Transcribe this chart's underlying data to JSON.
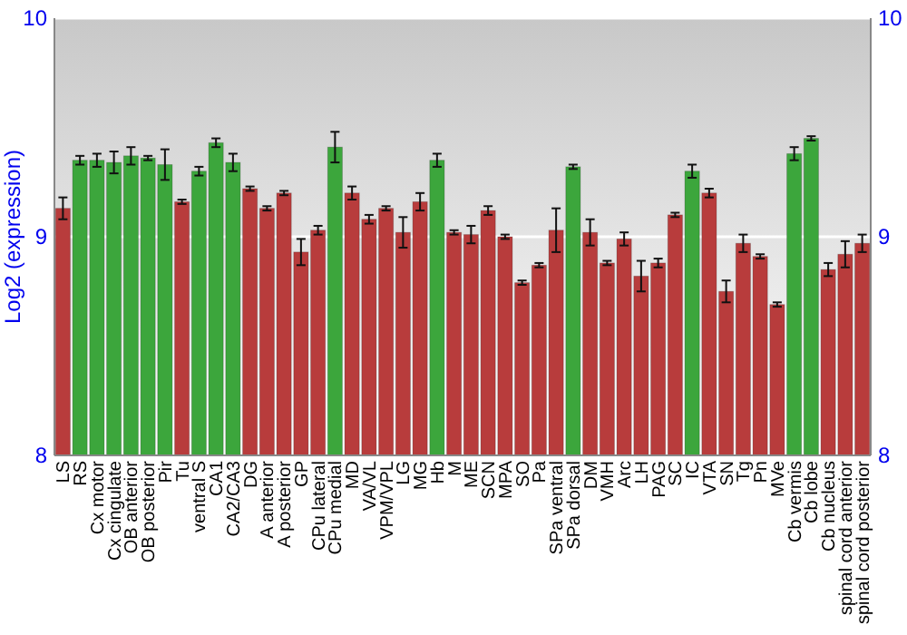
{
  "chart_data": {
    "type": "bar",
    "ylabel": "Log2 (expression)",
    "categories": [
      "LS",
      "RS",
      "Cx motor",
      "Cx cingulate",
      "OB anterior",
      "OB posterior",
      "Pir",
      "Tu",
      "ventral S",
      "CA1",
      "CA2/CA3",
      "DG",
      "A anterior",
      "A posterior",
      "GP",
      "CPu lateral",
      "CPu medial",
      "MD",
      "VA/VL",
      "VPM/VPL",
      "LG",
      "MG",
      "Hb",
      "M",
      "ME",
      "SCN",
      "MPA",
      "SO",
      "Pa",
      "SPa ventral",
      "SPa dorsal",
      "DM",
      "VMH",
      "Arc",
      "LH",
      "PAG",
      "SC",
      "IC",
      "VTA",
      "SN",
      "Tg",
      "Pn",
      "MVe",
      "Cb vermis",
      "Cb lobe",
      "Cb nucleus",
      "spinal cord anterior",
      "spinal cord posterior"
    ],
    "values": [
      9.13,
      9.35,
      9.35,
      9.34,
      9.37,
      9.36,
      9.33,
      9.16,
      9.3,
      9.43,
      9.34,
      9.22,
      9.13,
      9.2,
      8.93,
      9.03,
      9.41,
      9.2,
      9.08,
      9.13,
      9.02,
      9.16,
      9.35,
      9.02,
      9.01,
      9.12,
      9.0,
      8.79,
      8.87,
      9.03,
      9.32,
      9.02,
      8.88,
      8.99,
      8.82,
      8.88,
      9.1,
      9.3,
      9.2,
      8.75,
      8.97,
      8.91,
      8.69,
      9.38,
      9.45,
      8.85,
      8.92,
      8.97
    ],
    "errors": [
      0.05,
      0.02,
      0.03,
      0.05,
      0.04,
      0.01,
      0.07,
      0.01,
      0.02,
      0.02,
      0.04,
      0.01,
      0.01,
      0.01,
      0.06,
      0.02,
      0.07,
      0.03,
      0.02,
      0.01,
      0.07,
      0.04,
      0.03,
      0.01,
      0.04,
      0.02,
      0.01,
      0.01,
      0.01,
      0.1,
      0.01,
      0.06,
      0.01,
      0.03,
      0.07,
      0.02,
      0.01,
      0.03,
      0.02,
      0.05,
      0.04,
      0.01,
      0.01,
      0.03,
      0.01,
      0.03,
      0.06,
      0.04
    ],
    "colors": [
      "#b83c3c",
      "#3ca63c",
      "#3ca63c",
      "#3ca63c",
      "#3ca63c",
      "#3ca63c",
      "#3ca63c",
      "#b83c3c",
      "#3ca63c",
      "#3ca63c",
      "#3ca63c",
      "#b83c3c",
      "#b83c3c",
      "#b83c3c",
      "#b83c3c",
      "#b83c3c",
      "#3ca63c",
      "#b83c3c",
      "#b83c3c",
      "#b83c3c",
      "#b83c3c",
      "#b83c3c",
      "#3ca63c",
      "#b83c3c",
      "#b83c3c",
      "#b83c3c",
      "#b83c3c",
      "#b83c3c",
      "#b83c3c",
      "#b83c3c",
      "#3ca63c",
      "#b83c3c",
      "#b83c3c",
      "#b83c3c",
      "#b83c3c",
      "#b83c3c",
      "#b83c3c",
      "#3ca63c",
      "#b83c3c",
      "#b83c3c",
      "#b83c3c",
      "#b83c3c",
      "#b83c3c",
      "#3ca63c",
      "#3ca63c",
      "#b83c3c",
      "#b83c3c",
      "#b83c3c"
    ],
    "ylim": [
      8,
      10
    ],
    "yticks": [
      8,
      9,
      10
    ],
    "y2lim": [
      8,
      10
    ],
    "y2ticks": [
      8,
      9,
      10
    ],
    "grid": "y"
  }
}
